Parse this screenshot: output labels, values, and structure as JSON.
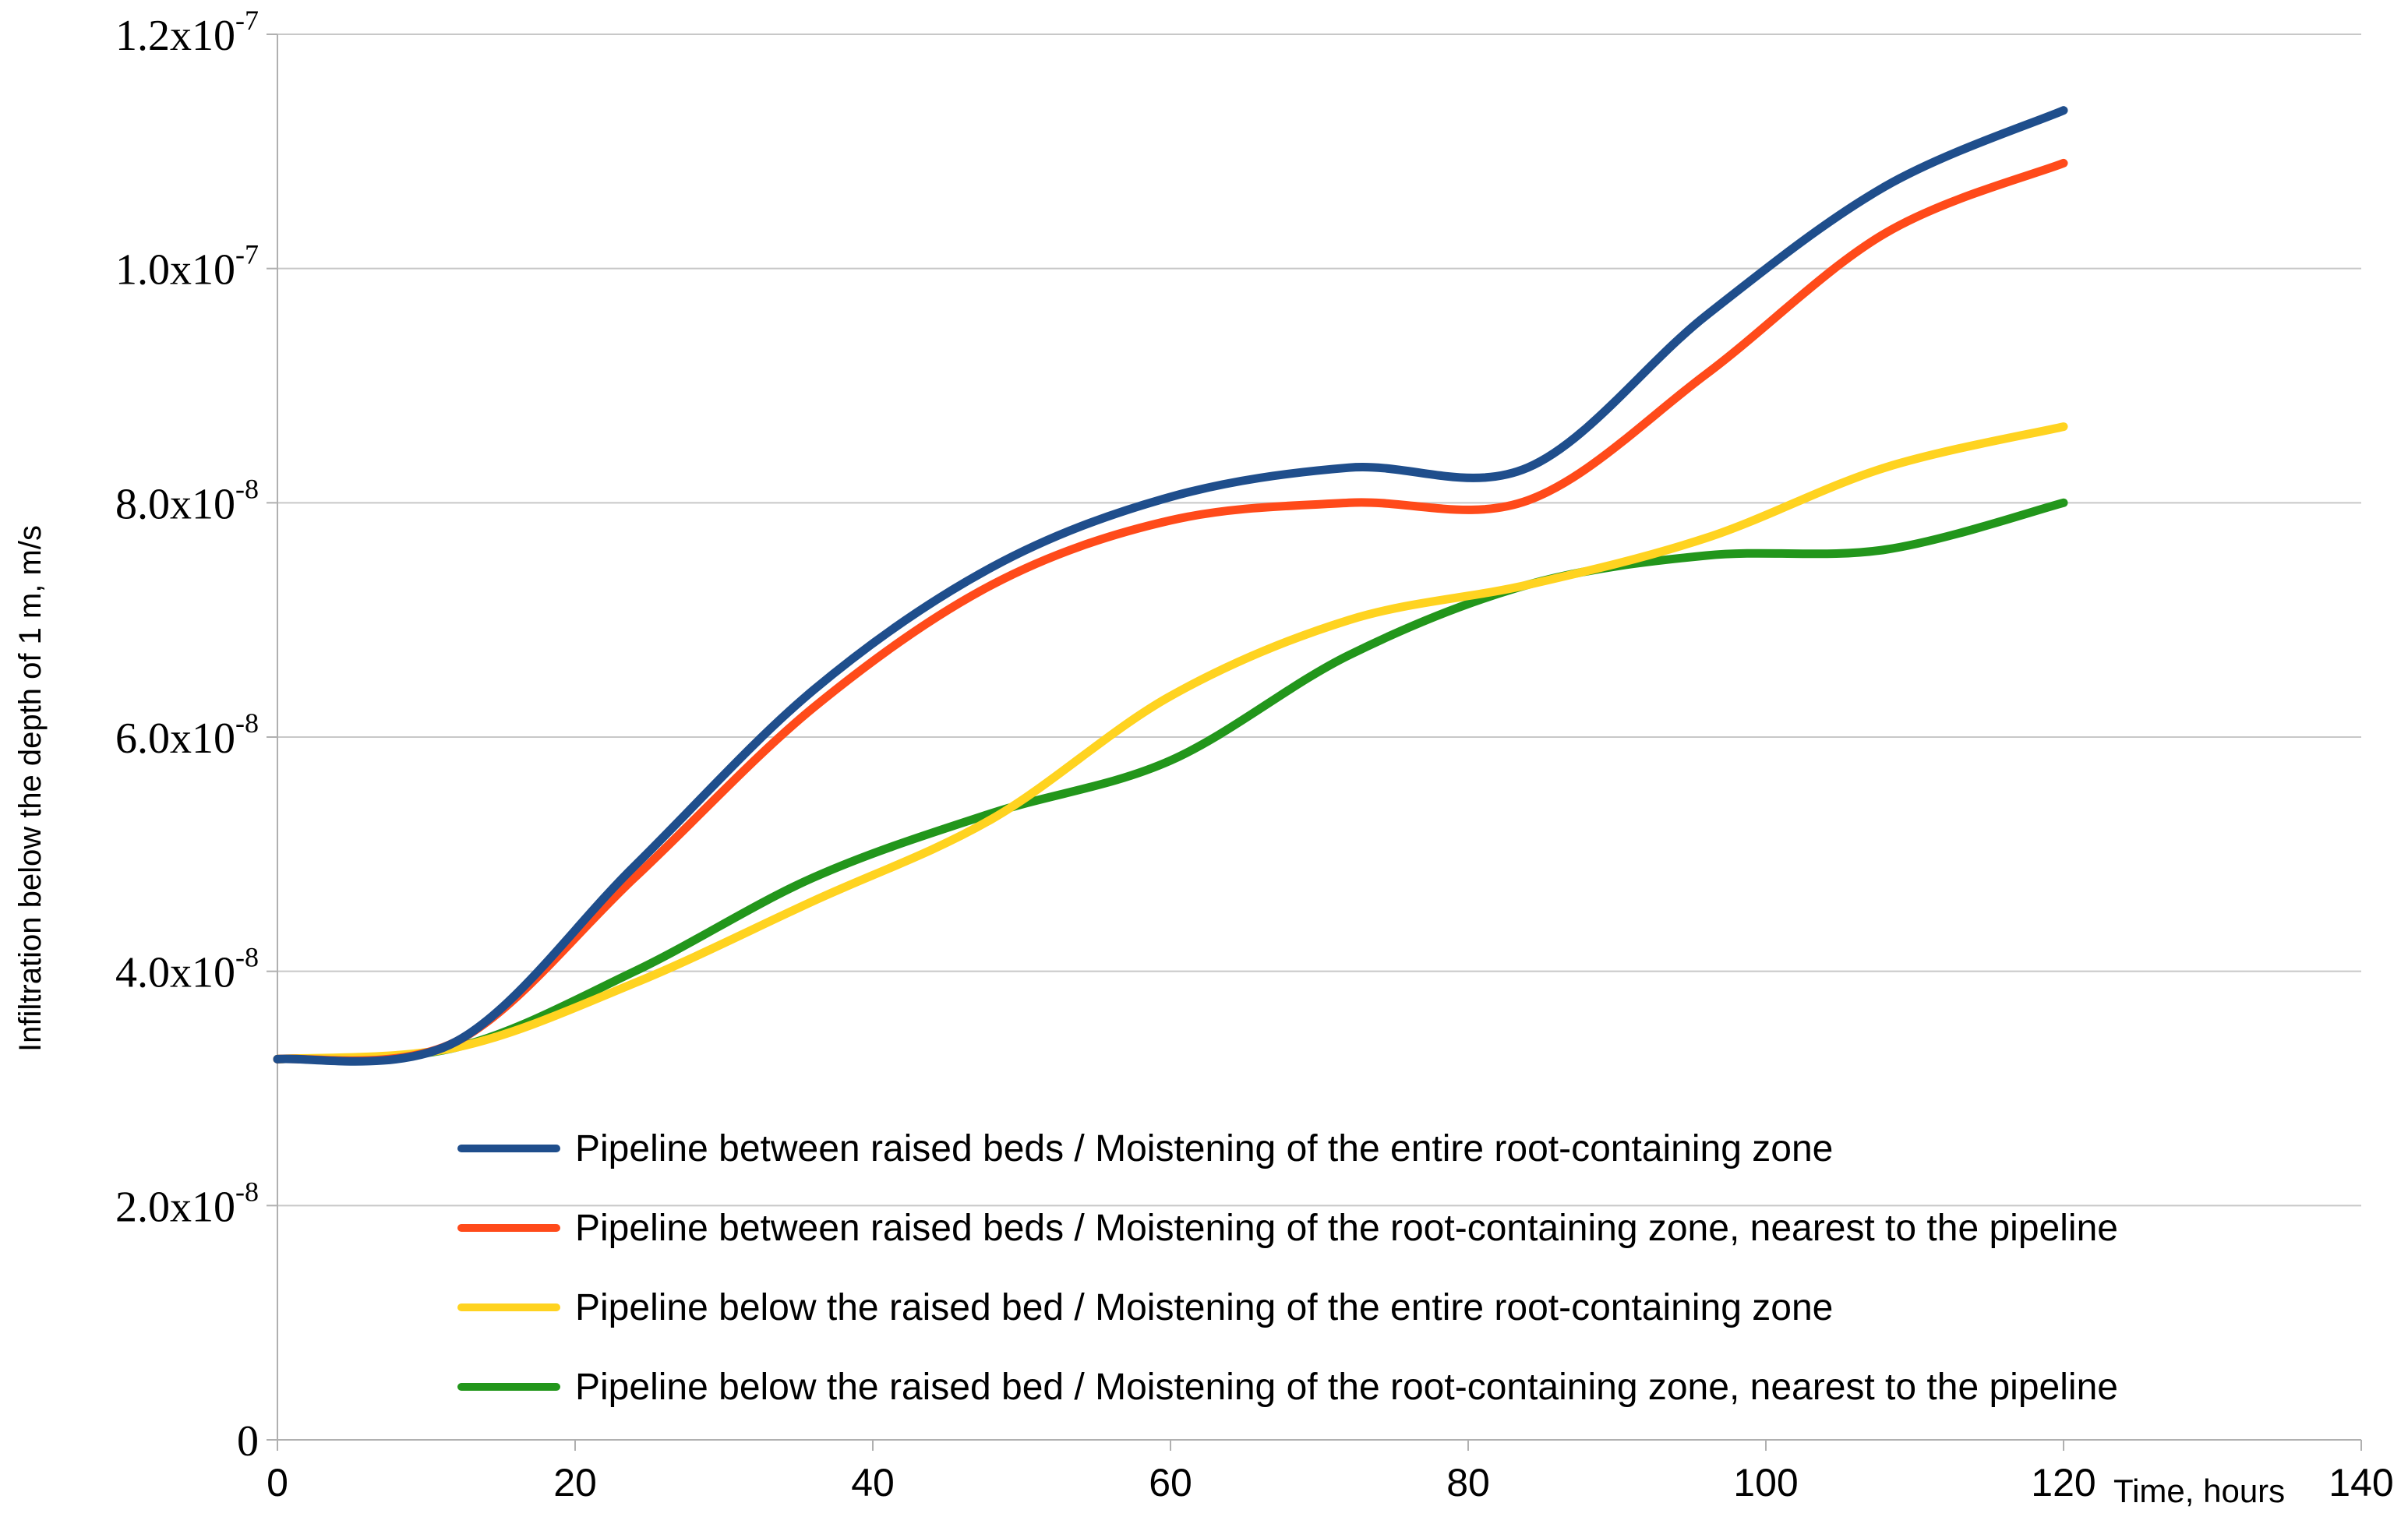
{
  "chart_data": {
    "type": "line",
    "title": "",
    "xlabel": "Time, hours",
    "ylabel": "Infiltration below the depth of 1 m, m/s",
    "xlim": [
      0,
      140
    ],
    "ylim": [
      0,
      1.2e-07
    ],
    "x_ticks": [
      0,
      20,
      40,
      60,
      80,
      100,
      120,
      140
    ],
    "y_ticks": [
      {
        "value": 0,
        "mantissa": "0",
        "exponent": ""
      },
      {
        "value": 2e-08,
        "mantissa": "2.0x10",
        "exponent": "-8"
      },
      {
        "value": 4e-08,
        "mantissa": "4.0x10",
        "exponent": "-8"
      },
      {
        "value": 6e-08,
        "mantissa": "6.0x10",
        "exponent": "-8"
      },
      {
        "value": 8e-08,
        "mantissa": "8.0x10",
        "exponent": "-8"
      },
      {
        "value": 1e-07,
        "mantissa": "1.0x10",
        "exponent": "-7"
      },
      {
        "value": 1.2e-07,
        "mantissa": "1.2x10",
        "exponent": "-7"
      }
    ],
    "grid": "horizontal",
    "legend_position": "bottom-right",
    "x": [
      0,
      12,
      24,
      36,
      48,
      60,
      72,
      84,
      96,
      108,
      120
    ],
    "series": [
      {
        "name": "Pipeline between raised beds / Moistening of the entire root-containing zone",
        "color": "#1f4e8c",
        "values": [
          3.25e-08,
          3.4e-08,
          4.9e-08,
          6.4e-08,
          7.45e-08,
          8.05e-08,
          8.3e-08,
          8.3e-08,
          9.6e-08,
          1.07e-07,
          1.135e-07
        ]
      },
      {
        "name": "Pipeline between raised beds / Moistening of the root-containing zone, nearest to the pipeline",
        "color": "#ff4a1a",
        "values": [
          3.25e-08,
          3.4e-08,
          4.8e-08,
          6.25e-08,
          7.3e-08,
          7.85e-08,
          8e-08,
          8.02e-08,
          9.1e-08,
          1.03e-07,
          1.09e-07
        ]
      },
      {
        "name": "Pipeline below the raised bed / Moistening of the entire root-containing zone",
        "color": "#ffd320",
        "values": [
          3.25e-08,
          3.35e-08,
          3.9e-08,
          4.6e-08,
          5.3e-08,
          6.35e-08,
          7e-08,
          7.3e-08,
          7.7e-08,
          8.3e-08,
          8.65e-08
        ]
      },
      {
        "name": "Pipeline below the raised bed / Moistening of the root-containing zone, nearest to the pipeline",
        "color": "#22961b",
        "values": [
          3.25e-08,
          3.35e-08,
          4e-08,
          4.8e-08,
          5.35e-08,
          5.8e-08,
          6.7e-08,
          7.3e-08,
          7.55e-08,
          7.6e-08,
          8e-08
        ]
      }
    ]
  }
}
